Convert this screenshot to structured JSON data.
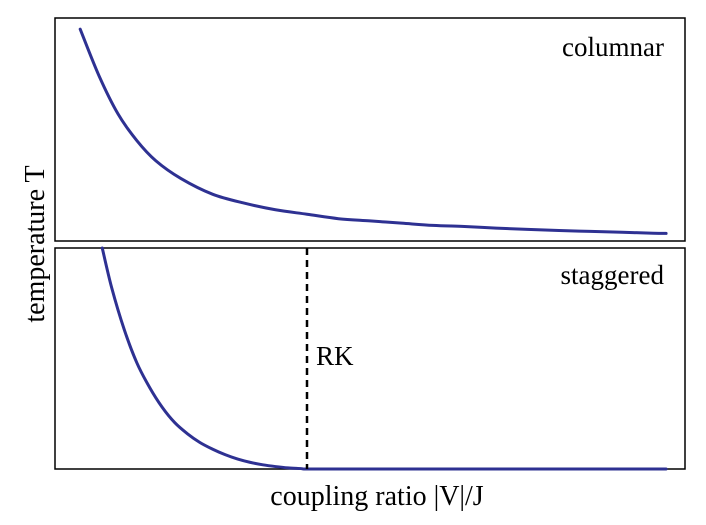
{
  "chart_data": [
    {
      "type": "line",
      "panel": "top",
      "label": "columnar",
      "xlabel": "coupling ratio |V|/J",
      "ylabel": "temperature T",
      "xlim": [
        0,
        1
      ],
      "ylim": [
        0,
        1
      ],
      "grid": false,
      "series": [
        {
          "color": "#2e3192",
          "x": [
            0.04,
            0.07,
            0.1,
            0.13,
            0.16,
            0.2,
            0.25,
            0.3,
            0.35,
            0.4,
            0.45,
            0.5,
            0.55,
            0.6,
            0.65,
            0.7,
            0.75,
            0.8,
            0.85,
            0.9,
            0.95,
            0.97
          ],
          "y": [
            0.95,
            0.74,
            0.57,
            0.45,
            0.36,
            0.28,
            0.21,
            0.17,
            0.14,
            0.12,
            0.1,
            0.09,
            0.08,
            0.07,
            0.065,
            0.058,
            0.052,
            0.047,
            0.043,
            0.039,
            0.035,
            0.034
          ]
        }
      ]
    },
    {
      "type": "line",
      "panel": "bottom",
      "label": "staggered",
      "xlabel": "coupling ratio |V|/J",
      "ylabel": "temperature T",
      "xlim": [
        0,
        1
      ],
      "ylim": [
        0,
        1
      ],
      "grid": false,
      "series": [
        {
          "color": "#2e3192",
          "x": [
            0.075,
            0.09,
            0.11,
            0.13,
            0.15,
            0.17,
            0.19,
            0.21,
            0.23,
            0.25,
            0.27,
            0.29,
            0.31,
            0.33,
            0.35,
            0.37,
            0.39,
            0.4,
            0.45,
            0.55,
            0.65,
            0.75,
            0.85,
            0.95,
            0.97
          ],
          "y": [
            1.0,
            0.82,
            0.63,
            0.48,
            0.37,
            0.28,
            0.21,
            0.16,
            0.12,
            0.09,
            0.065,
            0.045,
            0.03,
            0.019,
            0.011,
            0.005,
            0.002,
            0.0,
            0.0,
            0.0,
            0.0,
            0.0,
            0.0,
            0.0,
            0.0
          ]
        }
      ],
      "annotations": [
        {
          "text": "RK",
          "x": 0.4,
          "style": "dashed-vertical-line"
        }
      ]
    }
  ]
}
